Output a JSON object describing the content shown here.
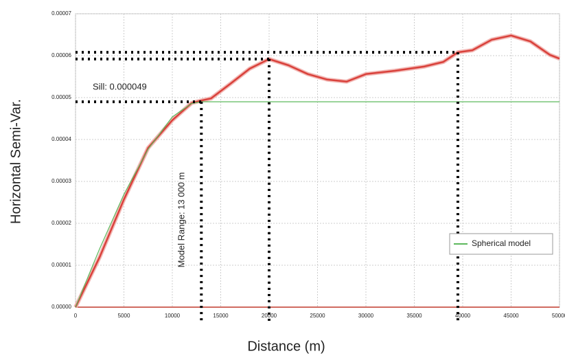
{
  "chart_data": {
    "type": "line",
    "x_label": "Distance (m)",
    "y_label": "Horizontal Semi-Var.",
    "annotations": [
      "Sill: 0.000049",
      "Model Range: 13 000 m"
    ],
    "x": [
      0,
      2500,
      5000,
      7500,
      10000,
      12000,
      13000,
      14000,
      16000,
      18000,
      20000,
      22000,
      24000,
      26000,
      28000,
      30000,
      33000,
      36000,
      38000,
      39500,
      41000,
      43000,
      45000,
      47000,
      49000,
      50000
    ],
    "series": [
      {
        "color": "#d9413b",
        "values": [
          0,
          1.2e-05,
          2.57e-05,
          3.8e-05,
          4.46e-05,
          4.87e-05,
          4.93e-05,
          4.98e-05,
          5.33e-05,
          5.69e-05,
          5.92e-05,
          5.77e-05,
          5.56e-05,
          5.43e-05,
          5.38e-05,
          5.56e-05,
          5.64e-05,
          5.74e-05,
          5.85e-05,
          6.08e-05,
          6.13e-05,
          6.38e-05,
          6.48e-05,
          6.34e-05,
          6.02e-05,
          5.93e-05
        ]
      },
      {
        "name": "Spherical model",
        "color": "#5cb85c",
        "values": [
          0,
          1.4e-05,
          2.69e-05,
          3.77e-05,
          4.54e-05,
          4.86e-05,
          4.9e-05,
          4.9e-05,
          4.9e-05,
          4.9e-05,
          4.9e-05,
          4.9e-05,
          4.9e-05,
          4.9e-05,
          4.9e-05,
          4.9e-05,
          4.9e-05,
          4.9e-05,
          4.9e-05,
          4.9e-05,
          4.9e-05,
          4.9e-05,
          4.9e-05,
          4.9e-05,
          4.9e-05,
          4.9e-05
        ]
      }
    ],
    "reference_lines": [
      {
        "x": 13000,
        "y": 4.9e-05
      },
      {
        "x": 20000,
        "y": 5.92e-05
      },
      {
        "x": 39500,
        "y": 6.08e-05
      }
    ],
    "xlim": [
      0,
      50000
    ],
    "xticks": [
      0,
      5000,
      10000,
      15000,
      20000,
      25000,
      30000,
      35000,
      40000,
      45000,
      50000
    ],
    "ylim": [
      0,
      7e-05
    ],
    "yticks": [
      {
        "value": 0,
        "label": "0.00000"
      },
      {
        "value": 1e-05,
        "label": "0.00001"
      },
      {
        "value": 2e-05,
        "label": "0.00002"
      },
      {
        "value": 3e-05,
        "label": "0.00003"
      },
      {
        "value": 4e-05,
        "label": "0.00004"
      },
      {
        "value": 5e-05,
        "label": "0.00005"
      },
      {
        "value": 6e-05,
        "label": "0.00006"
      },
      {
        "value": 7e-05,
        "label": "0.00007"
      }
    ],
    "grid": true,
    "legend": "lower right"
  }
}
